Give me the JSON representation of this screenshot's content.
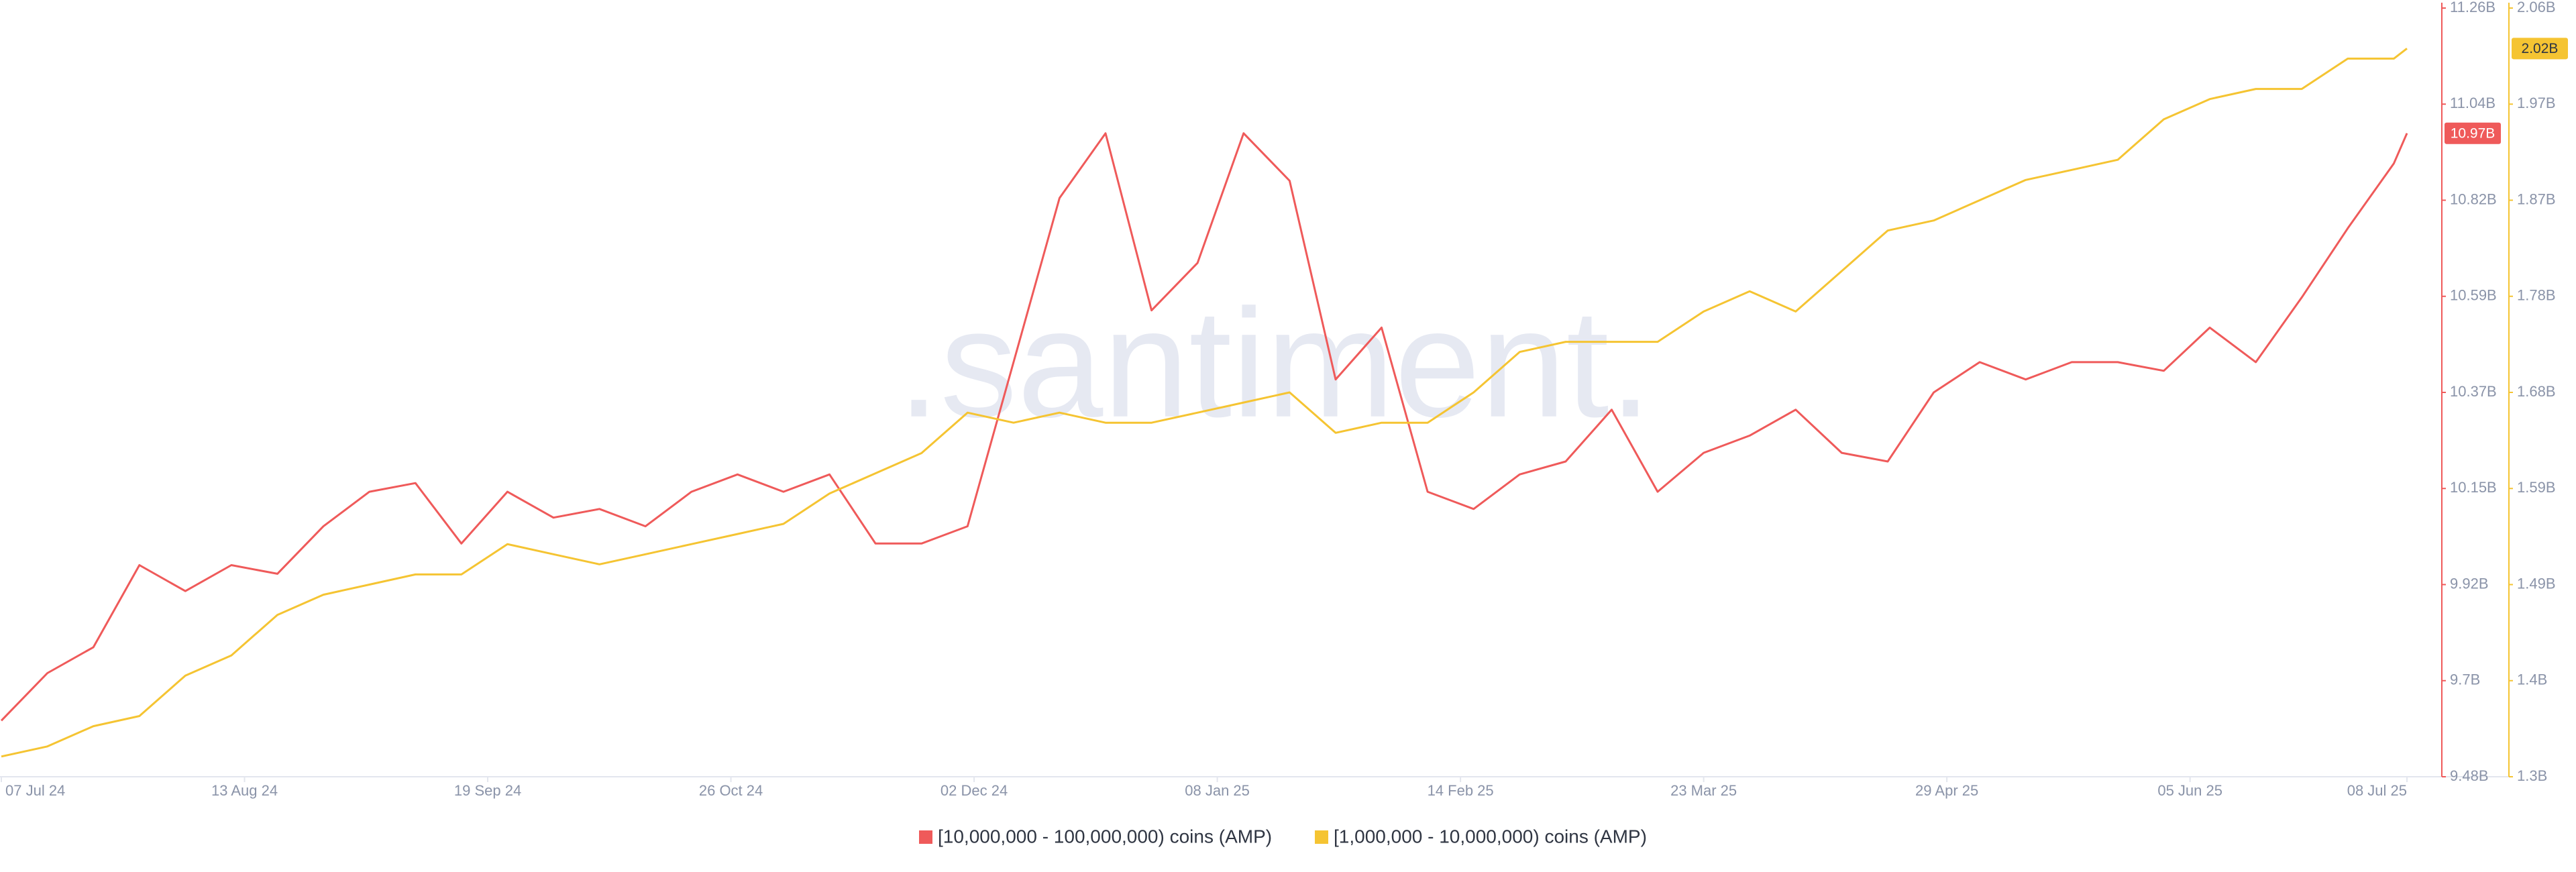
{
  "chart_data": {
    "type": "line",
    "x": [
      "2024-07-07",
      "2024-07-14",
      "2024-07-21",
      "2024-07-28",
      "2024-08-04",
      "2024-08-11",
      "2024-08-18",
      "2024-08-25",
      "2024-09-01",
      "2024-09-08",
      "2024-09-15",
      "2024-09-22",
      "2024-09-29",
      "2024-10-06",
      "2024-10-13",
      "2024-10-20",
      "2024-10-27",
      "2024-11-03",
      "2024-11-10",
      "2024-11-17",
      "2024-11-24",
      "2024-12-01",
      "2024-12-08",
      "2024-12-15",
      "2024-12-22",
      "2024-12-29",
      "2025-01-05",
      "2025-01-12",
      "2025-01-19",
      "2025-01-26",
      "2025-02-02",
      "2025-02-09",
      "2025-02-16",
      "2025-02-23",
      "2025-03-02",
      "2025-03-09",
      "2025-03-16",
      "2025-03-23",
      "2025-03-30",
      "2025-04-06",
      "2025-04-13",
      "2025-04-20",
      "2025-04-27",
      "2025-05-04",
      "2025-05-11",
      "2025-05-18",
      "2025-05-25",
      "2025-06-01",
      "2025-06-08",
      "2025-06-15",
      "2025-06-22",
      "2025-06-29",
      "2025-07-06",
      "2025-07-08"
    ],
    "series": [
      {
        "name": "[10,000,000 - 100,000,000) coins (AMP)",
        "color": "#ef5a5a",
        "current_label": "10.97B",
        "values": [
          9.61,
          9.72,
          9.78,
          9.97,
          9.91,
          9.97,
          9.95,
          10.06,
          10.14,
          10.16,
          10.02,
          10.14,
          10.08,
          10.1,
          10.06,
          10.14,
          10.18,
          10.14,
          10.18,
          10.02,
          10.02,
          10.06,
          10.44,
          10.82,
          10.97,
          10.56,
          10.67,
          10.97,
          10.86,
          10.4,
          10.52,
          10.14,
          10.1,
          10.18,
          10.21,
          10.33,
          10.14,
          10.23,
          10.27,
          10.33,
          10.23,
          10.21,
          10.37,
          10.44,
          10.4,
          10.44,
          10.44,
          10.42,
          10.52,
          10.44,
          10.59,
          10.75,
          10.9,
          10.97
        ]
      },
      {
        "name": "[1,000,000 - 10,000,000) coins (AMP)",
        "color": "#f5c432",
        "axis": "y2",
        "current_label": "2.02B",
        "values": [
          1.32,
          1.33,
          1.35,
          1.36,
          1.4,
          1.42,
          1.46,
          1.48,
          1.49,
          1.5,
          1.5,
          1.53,
          1.52,
          1.51,
          1.52,
          1.53,
          1.54,
          1.55,
          1.58,
          1.6,
          1.62,
          1.66,
          1.65,
          1.66,
          1.65,
          1.65,
          1.66,
          1.67,
          1.68,
          1.64,
          1.65,
          1.65,
          1.68,
          1.72,
          1.73,
          1.73,
          1.73,
          1.76,
          1.78,
          1.76,
          1.8,
          1.84,
          1.85,
          1.87,
          1.89,
          1.9,
          1.91,
          1.95,
          1.97,
          1.98,
          1.98,
          2.01,
          2.01,
          2.02
        ]
      }
    ],
    "xlim": [
      "2024-07-07",
      "2025-07-08"
    ],
    "xticks": [
      {
        "value": "2024-07-07",
        "label": "07 Jul 24"
      },
      {
        "value": "2024-08-13",
        "label": "13 Aug 24"
      },
      {
        "value": "2024-09-19",
        "label": "19 Sep 24"
      },
      {
        "value": "2024-10-26",
        "label": "26 Oct 24"
      },
      {
        "value": "2024-12-02",
        "label": "02 Dec 24"
      },
      {
        "value": "2025-01-08",
        "label": "08 Jan 25"
      },
      {
        "value": "2025-02-14",
        "label": "14 Feb 25"
      },
      {
        "value": "2025-03-23",
        "label": "23 Mar 25"
      },
      {
        "value": "2025-04-29",
        "label": "29 Apr 25"
      },
      {
        "value": "2025-06-05",
        "label": "05 Jun 25"
      },
      {
        "value": "2025-07-08",
        "label": "08 Jul 25"
      }
    ],
    "ylim": [
      9.48,
      11.26
    ],
    "yticks": [
      {
        "value": 9.48,
        "label": "9.48B"
      },
      {
        "value": 9.7025,
        "label": "9.7B"
      },
      {
        "value": 9.925,
        "label": "9.92B"
      },
      {
        "value": 10.1475,
        "label": "10.15B"
      },
      {
        "value": 10.37,
        "label": "10.37B"
      },
      {
        "value": 10.5925,
        "label": "10.59B"
      },
      {
        "value": 10.815,
        "label": "10.82B"
      },
      {
        "value": 11.0375,
        "label": "11.04B"
      },
      {
        "value": 11.26,
        "label": "11.26B"
      }
    ],
    "y2lim": [
      1.3,
      2.06
    ],
    "y2ticks": [
      {
        "value": 1.3,
        "label": "1.3B"
      },
      {
        "value": 1.395,
        "label": "1.4B"
      },
      {
        "value": 1.49,
        "label": "1.49B"
      },
      {
        "value": 1.585,
        "label": "1.59B"
      },
      {
        "value": 1.68,
        "label": "1.68B"
      },
      {
        "value": 1.775,
        "label": "1.78B"
      },
      {
        "value": 1.87,
        "label": "1.87B"
      },
      {
        "value": 1.965,
        "label": "1.97B"
      },
      {
        "value": 2.06,
        "label": "2.06B"
      }
    ],
    "watermark": ".santiment."
  }
}
